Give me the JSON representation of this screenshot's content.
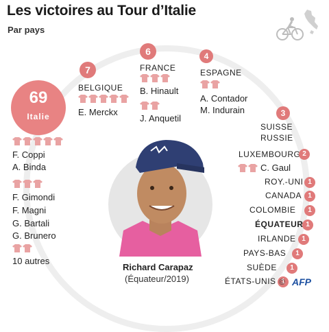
{
  "header": {
    "title": "Les victoires au Tour d’Italie",
    "subtitle": "Par pays"
  },
  "countries": [
    {
      "name": "Italie",
      "wins": "69",
      "riders": [
        "F. Coppi",
        "A. Binda",
        "F. Gimondi",
        "F. Magni",
        "G. Bartali",
        "G. Brunero"
      ],
      "others": "10 autres"
    },
    {
      "name": "Belgique",
      "wins": "7",
      "riders": [
        "E. Merckx"
      ]
    },
    {
      "name": "France",
      "wins": "6",
      "riders": [
        "B. Hinault",
        "J. Anquetil"
      ]
    },
    {
      "name": "Espagne",
      "wins": "4",
      "riders": [
        "A. Contador",
        "M. Indurain"
      ]
    },
    {
      "names": [
        "Suisse",
        "Russie"
      ],
      "wins": "3"
    },
    {
      "name": "Luxembourg",
      "wins": "2",
      "riders": [
        "C. Gaul"
      ]
    },
    {
      "name": "Roy.-Uni",
      "wins": "1"
    },
    {
      "name": "Canada",
      "wins": "1"
    },
    {
      "name": "Colombie",
      "wins": "1"
    },
    {
      "name": "Équateur",
      "wins": "1"
    },
    {
      "name": "Irlande",
      "wins": "1"
    },
    {
      "name": "Pays-Bas",
      "wins": "1"
    },
    {
      "name": "Suède",
      "wins": "1"
    },
    {
      "name": "États-Unis",
      "wins": "1"
    }
  ],
  "winner": {
    "name": "Richard Carapaz",
    "detail": "(Équateur/2019)"
  },
  "credit": {
    "copyright": "©",
    "agency": "AFP"
  },
  "colors": {
    "accent": "#e07a7a",
    "jersey": "#e9a3a3",
    "ring": "#eeeeee",
    "agency": "#1b4fa0"
  },
  "icons": [
    "cyclist-icon",
    "italy-map-icon",
    "jersey-icon",
    "portrait-photo"
  ]
}
